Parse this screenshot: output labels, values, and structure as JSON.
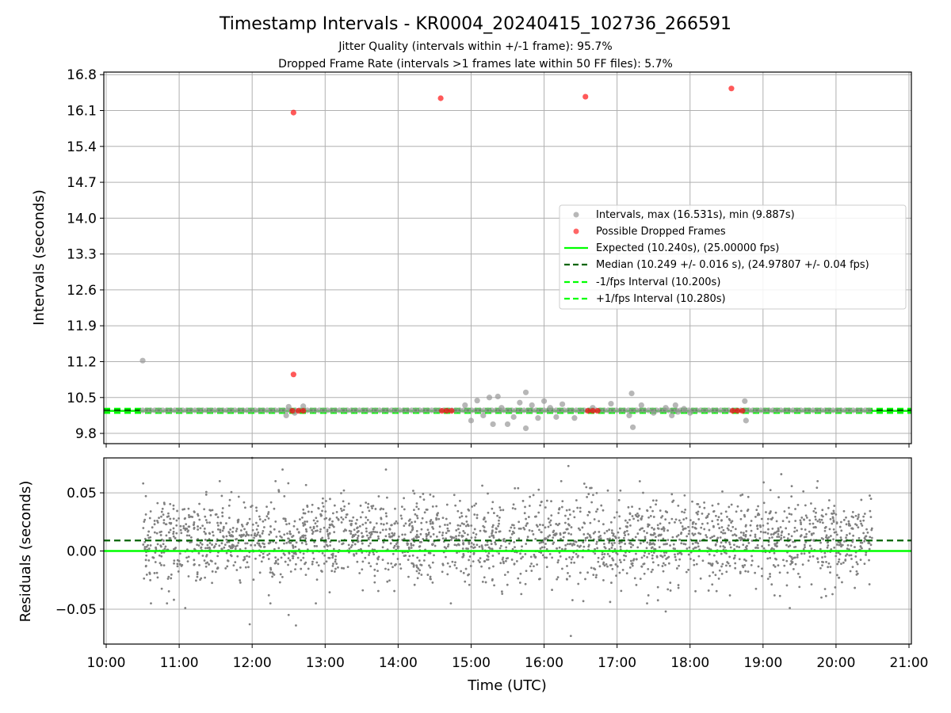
{
  "title": "Timestamp Intervals - KR0004_20240415_102736_266591",
  "subtitle_lines": [
    "Jitter Quality (intervals within +/-1 frame): 95.7%",
    "Dropped Frame Rate (intervals >1 frames late within 50 FF files): 5.7%"
  ],
  "colors": {
    "intervals": "#999999",
    "dropped": "#ff0000",
    "expected": "#00ff00",
    "median": "#006400",
    "fps_band": "#00ff00",
    "residuals": "#808080",
    "grid": "#b0b0b0"
  },
  "chart_data": [
    {
      "type": "scatter",
      "panel": "top",
      "ylabel": "Intervals (seconds)",
      "xlim": [
        "10:00",
        "21:00"
      ],
      "ylim": [
        9.6,
        16.85
      ],
      "yticks": [
        "9.8",
        "10.5",
        "11.2",
        "11.9",
        "12.6",
        "13.3",
        "14.0",
        "14.7",
        "15.4",
        "16.1",
        "16.8"
      ],
      "grid": true,
      "legend_position": "center-right",
      "legend": [
        "Intervals, max (16.531s), min (9.887s)",
        "Possible Dropped Frames",
        "Expected (10.240s), (25.00000 fps)",
        "Median (10.249 +/- 0.016 s), (24.97807 +/- 0.04 fps)",
        "-1/fps Interval (10.200s)",
        "+1/fps Interval (10.280s)"
      ],
      "lines": {
        "expected": 10.24,
        "median": 10.249,
        "minus_1fps": 10.2,
        "plus_1fps": 10.28
      },
      "series": [
        {
          "name": "Intervals, max (16.531s), min (9.887s)",
          "points": [
            [
              "10:30",
              11.22
            ],
            [
              "12:28",
              10.15
            ],
            [
              "12:30",
              10.32
            ],
            [
              "12:42",
              10.33
            ],
            [
              "12:35",
              10.2
            ],
            [
              "14:55",
              10.35
            ],
            [
              "15:00",
              10.05
            ],
            [
              "15:05",
              10.44
            ],
            [
              "15:10",
              10.15
            ],
            [
              "15:15",
              10.5
            ],
            [
              "15:18",
              9.98
            ],
            [
              "15:22",
              10.52
            ],
            [
              "15:25",
              10.3
            ],
            [
              "15:30",
              9.98
            ],
            [
              "15:35",
              10.12
            ],
            [
              "15:40",
              10.4
            ],
            [
              "15:45",
              9.9
            ],
            [
              "15:45",
              10.6
            ],
            [
              "15:50",
              10.35
            ],
            [
              "15:55",
              10.1
            ],
            [
              "16:00",
              10.43
            ],
            [
              "16:05",
              10.3
            ],
            [
              "16:10",
              10.12
            ],
            [
              "16:15",
              10.37
            ],
            [
              "16:25",
              10.1
            ],
            [
              "16:40",
              10.3
            ],
            [
              "16:55",
              10.38
            ],
            [
              "17:10",
              10.15
            ],
            [
              "17:12",
              10.58
            ],
            [
              "17:13",
              9.92
            ],
            [
              "17:20",
              10.35
            ],
            [
              "17:30",
              10.2
            ],
            [
              "17:40",
              10.3
            ],
            [
              "17:45",
              10.15
            ],
            [
              "17:48",
              10.35
            ],
            [
              "17:50",
              10.22
            ],
            [
              "17:55",
              10.28
            ],
            [
              "18:00",
              10.2
            ],
            [
              "18:45",
              10.43
            ],
            [
              "18:46",
              10.05
            ]
          ]
        },
        {
          "name": "Possible Dropped Frames",
          "points": [
            [
              "12:34",
              16.06
            ],
            [
              "12:34",
              10.95
            ],
            [
              "12:33",
              10.24
            ],
            [
              "12:38",
              10.24
            ],
            [
              "12:42",
              10.24
            ],
            [
              "14:35",
              16.34
            ],
            [
              "14:36",
              10.24
            ],
            [
              "14:40",
              10.24
            ],
            [
              "14:44",
              10.24
            ],
            [
              "16:34",
              16.37
            ],
            [
              "16:36",
              10.24
            ],
            [
              "16:40",
              10.24
            ],
            [
              "16:44",
              10.24
            ],
            [
              "18:34",
              16.53
            ],
            [
              "18:35",
              10.24
            ],
            [
              "18:39",
              10.24
            ],
            [
              "18:43",
              10.24
            ]
          ]
        }
      ]
    },
    {
      "type": "scatter",
      "panel": "bottom",
      "xlabel": "Time (UTC)",
      "ylabel": "Residuals (seconds)",
      "xlim": [
        "10:00",
        "21:00"
      ],
      "ylim": [
        -0.08,
        0.08
      ],
      "xticks": [
        "10:00",
        "11:00",
        "12:00",
        "13:00",
        "14:00",
        "15:00",
        "16:00",
        "17:00",
        "18:00",
        "19:00",
        "20:00",
        "21:00"
      ],
      "yticks": [
        "−0.05",
        "0.00",
        "0.05"
      ],
      "grid": true,
      "lines": {
        "expected": 0.0,
        "median": 0.009
      },
      "series": [
        {
          "name": "Residuals",
          "x_range": [
            "10:30",
            "20:30"
          ],
          "count": 2500,
          "mean": 0.009,
          "std": 0.018,
          "outliers": [
            [
              "12:00",
              0.082
            ],
            [
              "12:25",
              0.07
            ],
            [
              "12:15",
              -0.045
            ],
            [
              "12:30",
              -0.055
            ],
            [
              "12:36",
              -0.064
            ],
            [
              "11:58",
              -0.063
            ],
            [
              "13:50",
              0.07
            ],
            [
              "16:20",
              0.073
            ],
            [
              "16:22",
              -0.073
            ],
            [
              "11:05",
              -0.049
            ],
            [
              "17:40",
              -0.052
            ],
            [
              "19:15",
              0.066
            ],
            [
              "19:22",
              -0.049
            ],
            [
              "19:48",
              -0.04
            ]
          ]
        }
      ]
    }
  ]
}
